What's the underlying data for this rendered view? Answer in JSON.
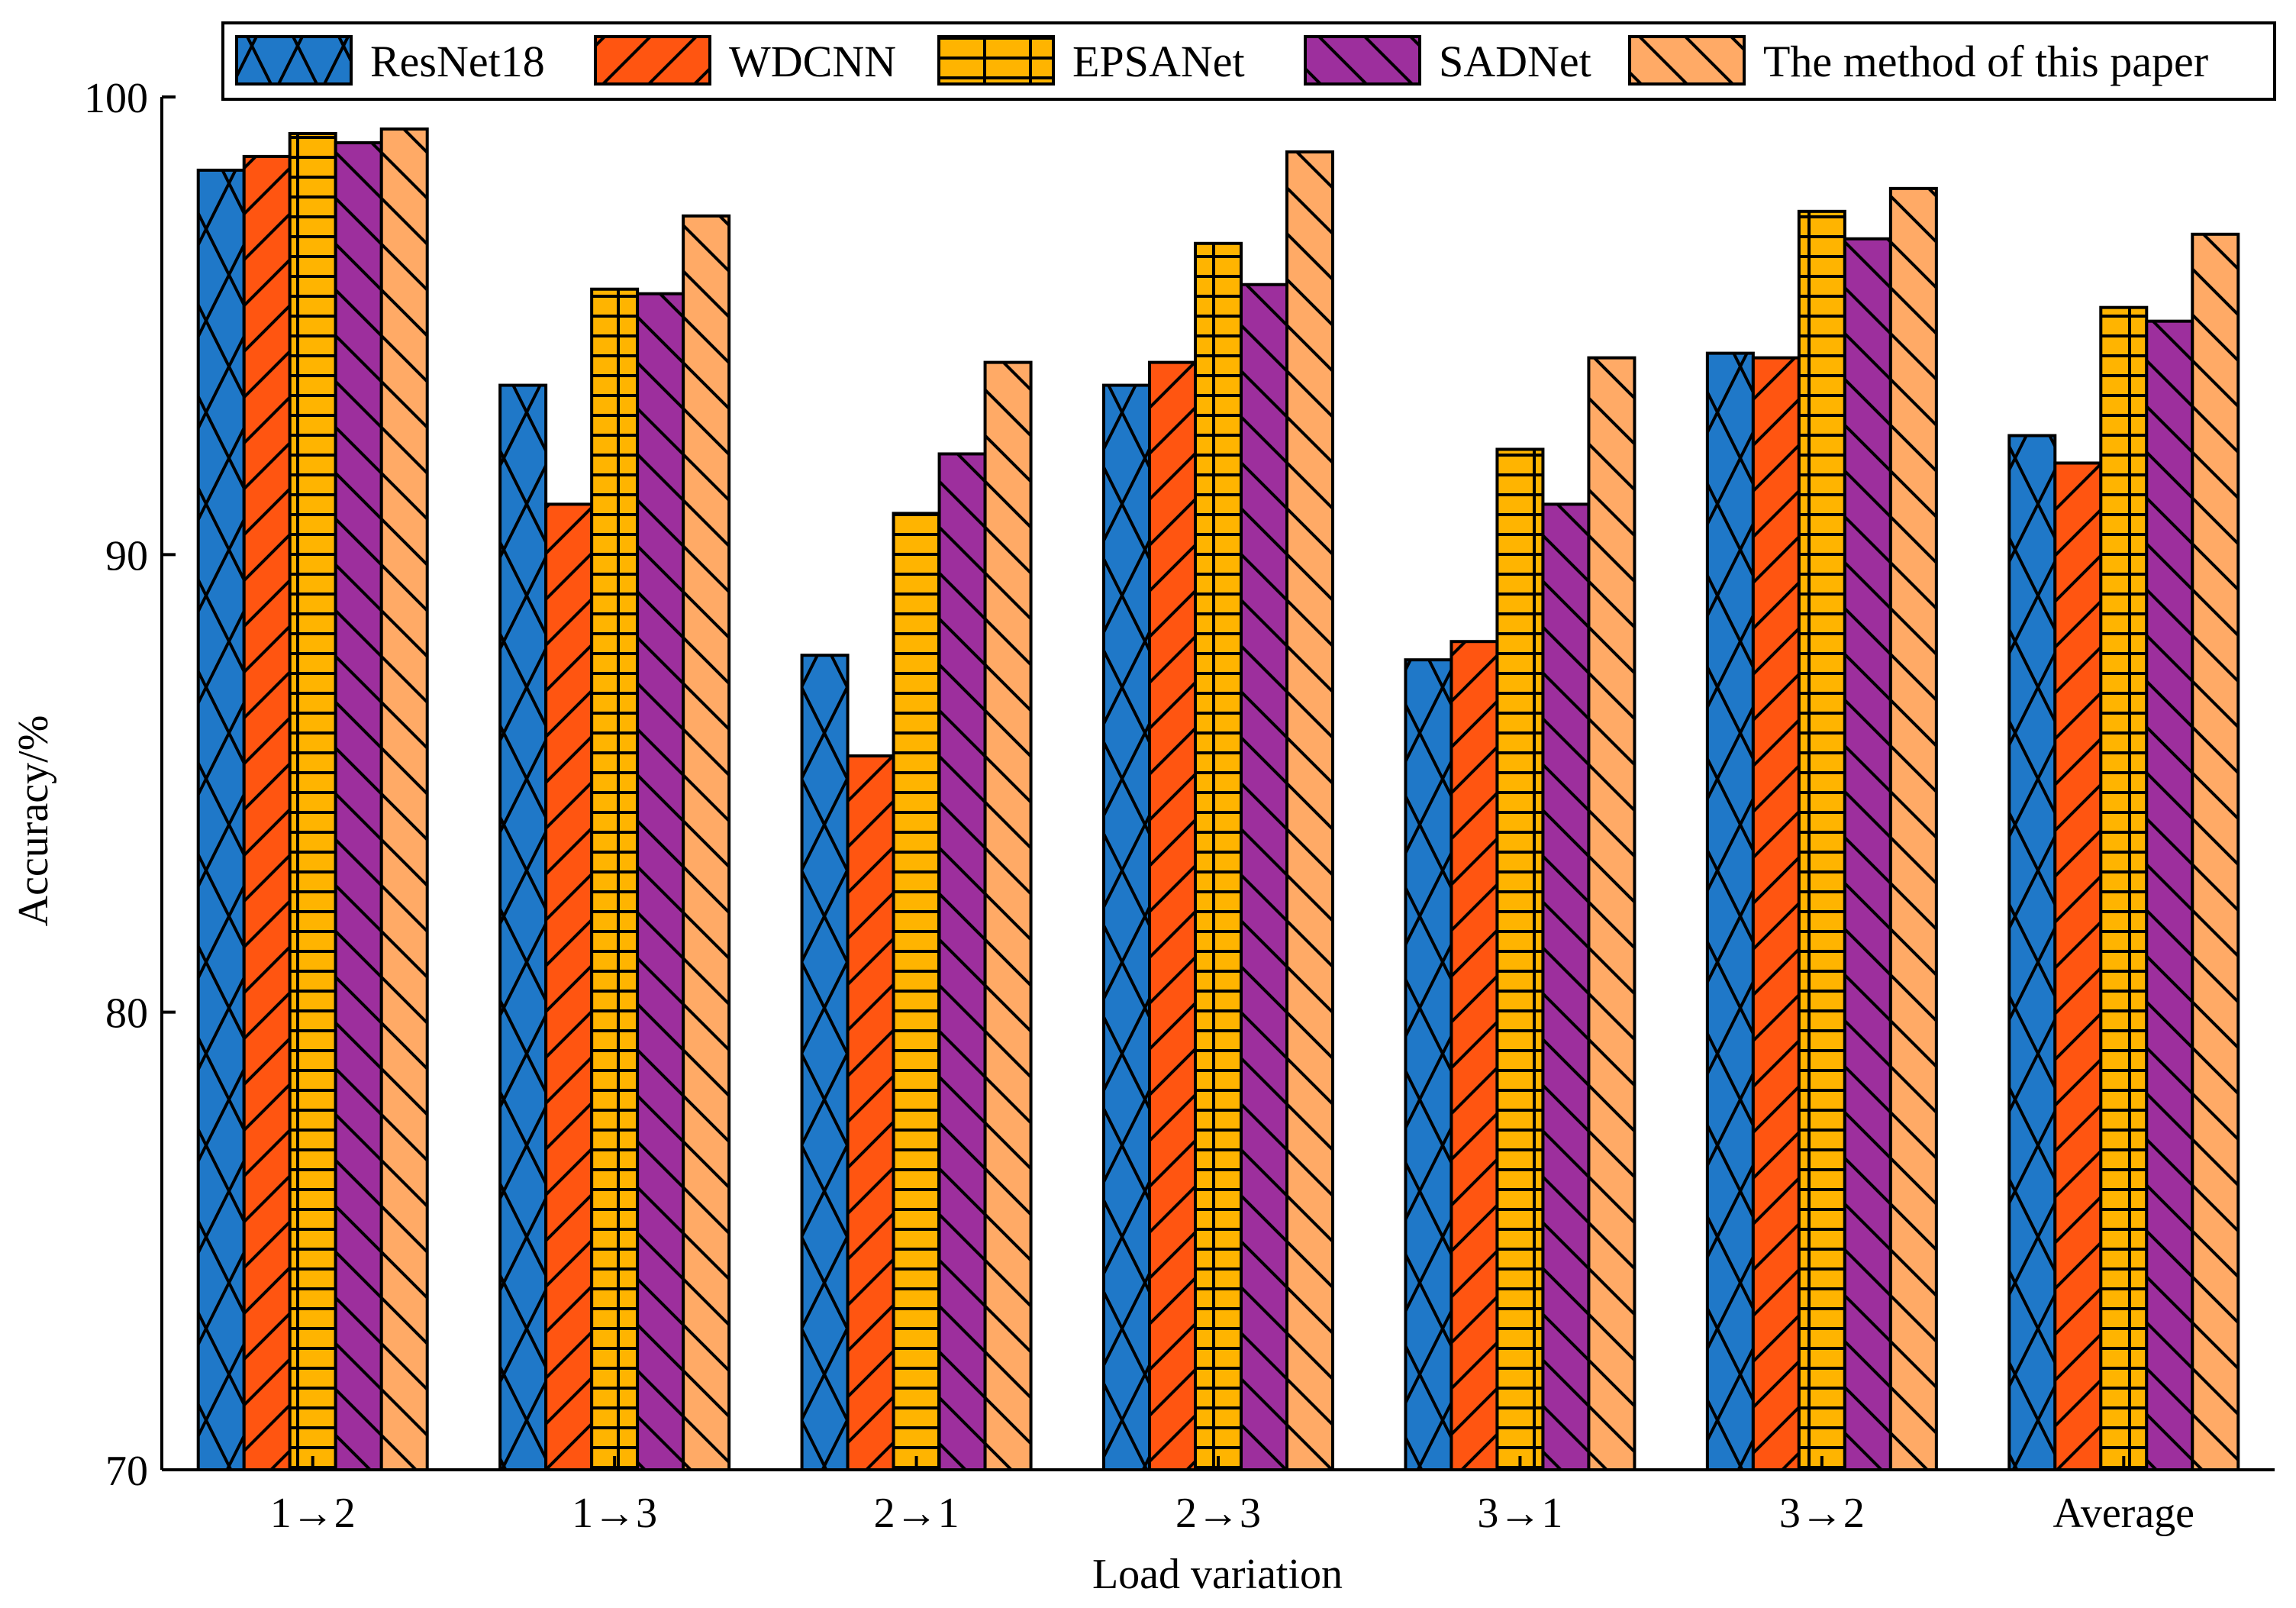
{
  "chart_data": {
    "type": "bar",
    "title": "",
    "xlabel": "Load variation",
    "ylabel": "Accuracy/%",
    "ylim": [
      70,
      100
    ],
    "yticks": [
      70,
      80,
      90,
      100
    ],
    "grid": false,
    "legend_position": "top",
    "categories": [
      "1→2",
      "1→3",
      "2→1",
      "2→3",
      "3→1",
      "3→2",
      "Average"
    ],
    "series": [
      {
        "name": "ResNet18",
        "color": "#1f78c8",
        "pattern": "crosshatch",
        "values": [
          98.4,
          93.7,
          87.8,
          93.7,
          87.7,
          94.4,
          92.6
        ]
      },
      {
        "name": "WDCNN",
        "color": "#ff5511",
        "pattern": "forward-diagonal",
        "values": [
          98.7,
          91.1,
          85.6,
          94.2,
          88.1,
          94.3,
          92.0
        ]
      },
      {
        "name": "EPSANet",
        "color": "#ffb400",
        "pattern": "grid-bricks",
        "values": [
          99.2,
          95.8,
          90.9,
          96.8,
          92.3,
          97.5,
          95.4
        ]
      },
      {
        "name": "SADNet",
        "color": "#9d2f9d",
        "pattern": "back-diagonal",
        "values": [
          99.0,
          95.7,
          92.2,
          95.9,
          91.1,
          96.9,
          95.1
        ]
      },
      {
        "name": "The method of this paper",
        "color": "#ffaa66",
        "pattern": "back-diagonal",
        "values": [
          99.3,
          97.4,
          94.2,
          98.8,
          94.3,
          98.0,
          97.0
        ]
      }
    ]
  }
}
